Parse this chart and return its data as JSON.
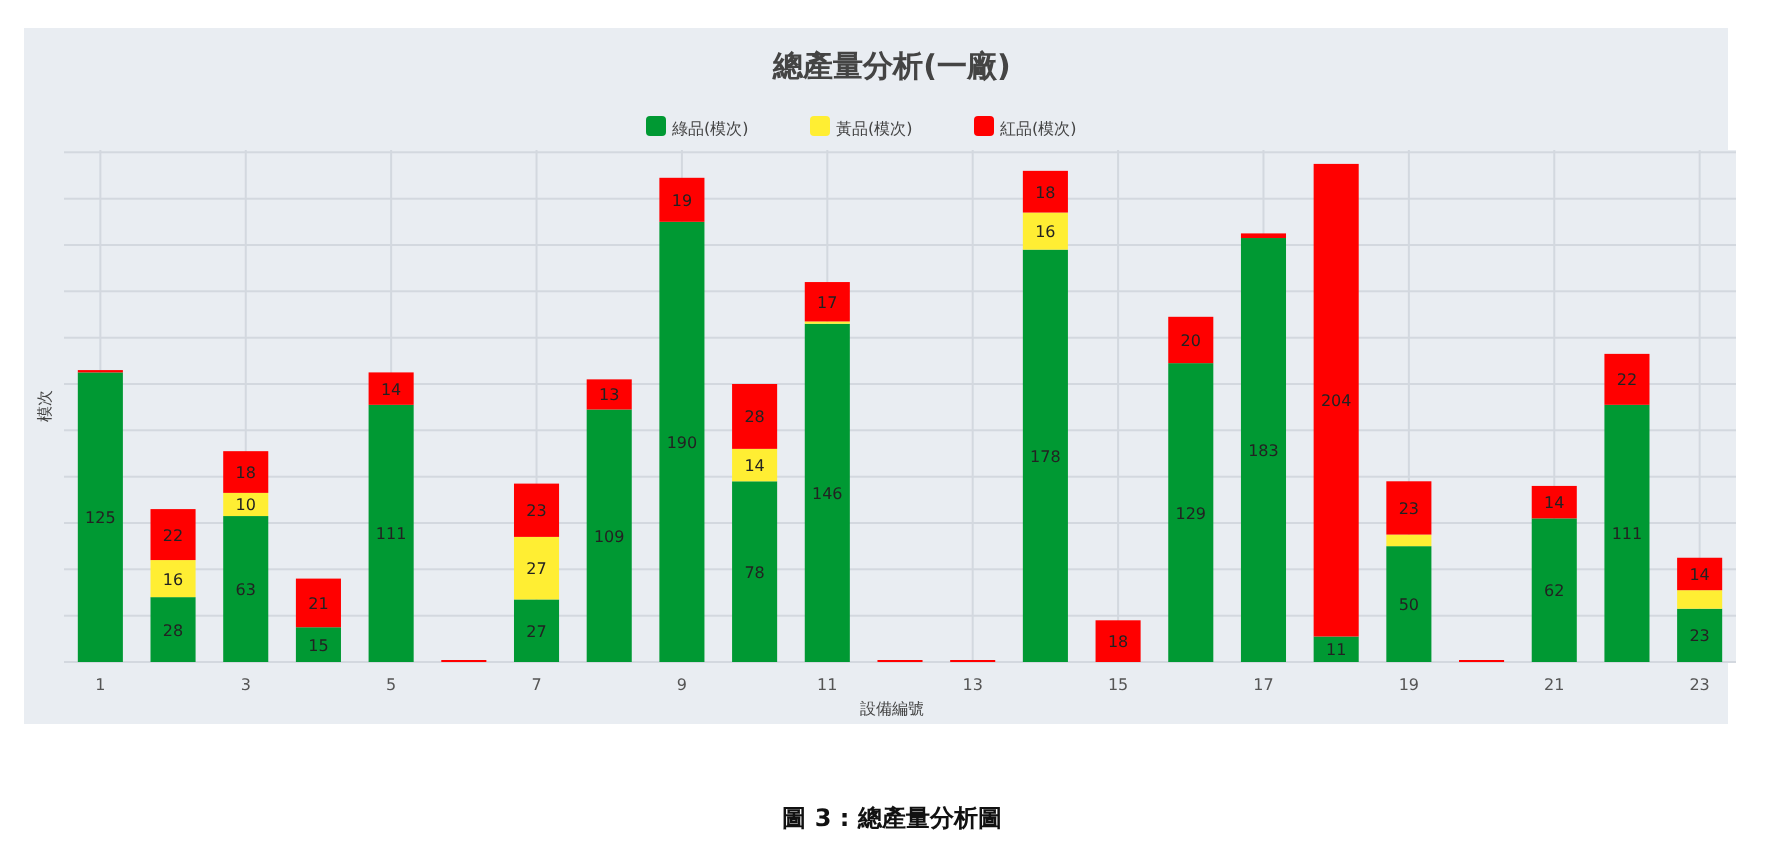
{
  "chart_data": {
    "type": "bar",
    "stacked": true,
    "title": "總產量分析(一廠)",
    "xlabel": "設備編號",
    "ylabel": "模次",
    "legend": "top",
    "grid": true,
    "x": [
      1,
      2,
      3,
      4,
      5,
      6,
      7,
      8,
      9,
      10,
      11,
      12,
      13,
      14,
      15,
      16,
      17,
      18,
      19,
      20,
      21,
      22,
      23
    ],
    "xlim": [
      0.5,
      23.5
    ],
    "xticks": [
      1,
      3,
      5,
      7,
      9,
      11,
      13,
      15,
      17,
      19,
      21,
      23
    ],
    "ylim": [
      0,
      221
    ],
    "yticks": [
      {
        "value": 0,
        "label": null
      },
      {
        "value": 20,
        "label": null
      },
      {
        "value": 40,
        "label": null
      },
      {
        "value": 60,
        "label": null
      },
      {
        "value": 80,
        "label": null
      },
      {
        "value": 100,
        "label": null
      },
      {
        "value": 120,
        "label": null
      },
      {
        "value": 140,
        "label": null
      },
      {
        "value": 160,
        "label": null
      },
      {
        "value": 180,
        "label": null
      },
      {
        "value": 200,
        "label": null
      },
      {
        "value": 220,
        "label": null
      }
    ],
    "series": [
      {
        "name": "綠品(模次)",
        "color": "#009933",
        "values": [
          125,
          28,
          63,
          15,
          111,
          null,
          27,
          109,
          190,
          78,
          146,
          null,
          null,
          178,
          null,
          129,
          183,
          11,
          50,
          null,
          62,
          111,
          23
        ],
        "value_labels": [
          "125",
          "28",
          "63",
          "15",
          "111",
          null,
          "27",
          "109",
          "190",
          "78",
          "146",
          null,
          null,
          "178",
          null,
          "129",
          "183",
          "11",
          "50",
          null,
          "62",
          "111",
          "23"
        ]
      },
      {
        "name": "黃品(模次)",
        "color": "#ffee33",
        "values": [
          null,
          16,
          10,
          null,
          null,
          null,
          27,
          null,
          null,
          14,
          1,
          null,
          null,
          16,
          null,
          null,
          null,
          null,
          5,
          null,
          null,
          null,
          8
        ],
        "value_labels": [
          null,
          "16",
          "10",
          null,
          null,
          null,
          "27",
          null,
          null,
          "14",
          null,
          null,
          null,
          "16",
          null,
          null,
          null,
          null,
          null,
          null,
          null,
          null,
          null
        ]
      },
      {
        "name": "紅品(模次)",
        "color": "#ff0000",
        "values": [
          1,
          22,
          18,
          21,
          14,
          0,
          23,
          13,
          19,
          28,
          17,
          0,
          0,
          18,
          18,
          20,
          2,
          204,
          23,
          0,
          14,
          22,
          14
        ],
        "value_labels": [
          null,
          "22",
          "18",
          "21",
          "14",
          null,
          "23",
          "13",
          "19",
          "28",
          "17",
          null,
          null,
          "18",
          "18",
          "20",
          null,
          "204",
          "23",
          null,
          "14",
          "22",
          "14"
        ]
      }
    ],
    "annotations": [
      "圖 3 : 總產量分析圖"
    ]
  }
}
